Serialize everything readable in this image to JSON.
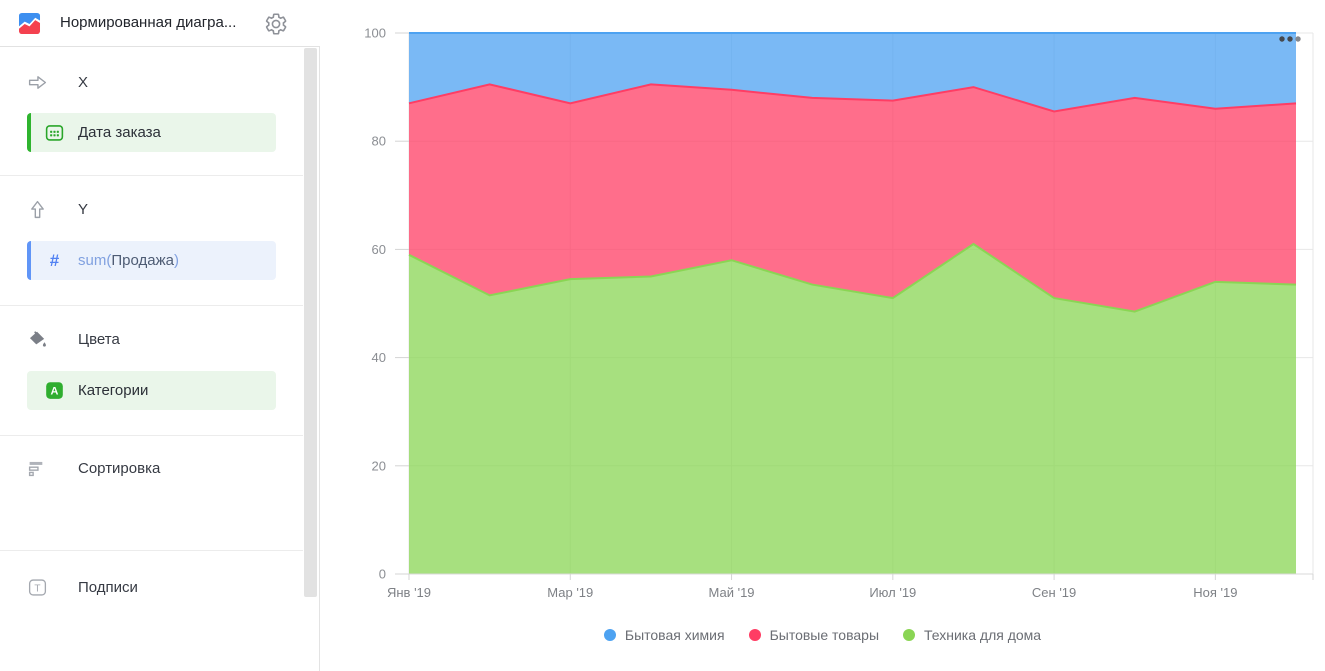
{
  "header": {
    "title": "Нормированная диагра...",
    "logo_icon": "area-chart-icon",
    "settings_icon": "gear-icon"
  },
  "sidebar": {
    "sections": [
      {
        "label": "X",
        "icon": "arrow-right-icon",
        "chips": [
          {
            "label": "Дата заказа",
            "icon": "calendar-icon",
            "accent": "green",
            "accent_bar": "#2fb42f"
          }
        ]
      },
      {
        "label": "Y",
        "icon": "arrow-up-icon",
        "chips": [
          {
            "parts": {
              "fn": "sum(",
              "field": "Продажа",
              "close": ")"
            },
            "icon": "hash-icon",
            "accent": "blue",
            "accent_bar": "#6095f7"
          }
        ]
      },
      {
        "label": "Цвета",
        "icon": "paint-bucket-icon",
        "chips": [
          {
            "label": "Категории",
            "icon": "letter-a-icon",
            "accent": "green",
            "accent_bar": null
          }
        ]
      },
      {
        "label": "Сортировка",
        "icon": "sort-icon",
        "chips": []
      },
      {
        "label": "Подписи",
        "icon": "text-icon",
        "chips": []
      }
    ],
    "accent_colors": {
      "green": "#2fae2f",
      "blue": "#5282f2"
    }
  },
  "chart_menu": {
    "icon": "ellipsis-icon"
  },
  "chart_data": {
    "type": "area",
    "stacking": "percent",
    "x": [
      "Янв '19",
      "Фев '19",
      "Мар '19",
      "Апр '19",
      "Май '19",
      "Июн '19",
      "Июл '19",
      "Авг '19",
      "Сен '19",
      "Окт '19",
      "Ноя '19",
      "Дек '19"
    ],
    "x_tick_indices": [
      0,
      2,
      4,
      6,
      8,
      10
    ],
    "x_tick_labels": [
      "Янв '19",
      "Мар '19",
      "Май '19",
      "Июл '19",
      "Сен '19",
      "Ноя '19"
    ],
    "y_ticks": [
      0,
      20,
      40,
      60,
      80,
      100
    ],
    "ylim": [
      0,
      100
    ],
    "grid": true,
    "legend_position": "bottom",
    "series": [
      {
        "name": "Бытовая химия",
        "color": "#4DA2F1",
        "values": [
          13,
          9.5,
          13,
          9.5,
          10.5,
          12,
          12.5,
          10,
          14.5,
          12,
          14,
          13
        ]
      },
      {
        "name": "Бытовые товары",
        "color": "#FF3D64",
        "values": [
          28,
          39,
          32.5,
          35.5,
          31.5,
          34.5,
          36.5,
          29,
          34.5,
          39.5,
          32,
          33.5
        ]
      },
      {
        "name": "Техника для дома",
        "color": "#8AD554",
        "values": [
          59,
          51.5,
          54.5,
          55,
          58,
          53.5,
          51,
          61,
          51,
          48.5,
          54,
          53.5
        ]
      }
    ]
  }
}
